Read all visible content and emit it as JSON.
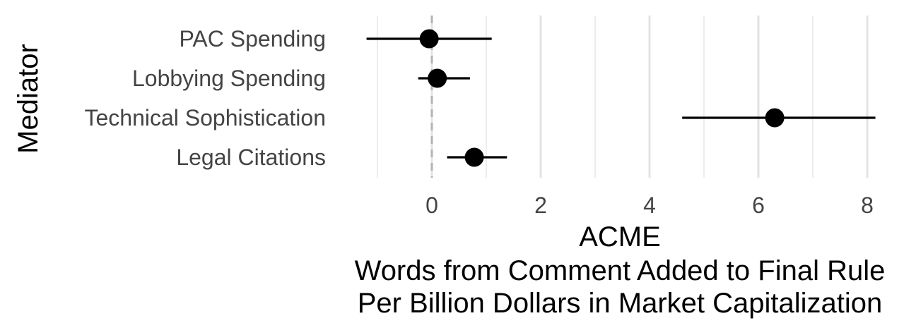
{
  "chart_data": {
    "type": "scatter",
    "subtype": "coefficient-plot-with-intervals",
    "xlabel_lines": [
      "ACME",
      "Words from Comment Added to Final Rule",
      "Per Billion Dollars in Market Capitalization"
    ],
    "ylabel": "Mediator",
    "xlim": [
      -1.2,
      8.3
    ],
    "x_ticks": [
      0,
      2,
      4,
      6,
      8
    ],
    "x_minor_ticks": [
      -1,
      1,
      3,
      5,
      7
    ],
    "reference_line": 0,
    "grid": true,
    "colors": {
      "point": "#000000",
      "interval": "#000000",
      "grid": "#e3e3e3",
      "reference_line": "#b3b3b3",
      "label": "#444444"
    },
    "categories": [
      "PAC Spending",
      "Lobbying Spending",
      "Technical Sophistication",
      "Legal Citations"
    ],
    "points": [
      {
        "category": "PAC Spending",
        "estimate": -0.05,
        "lower": -1.2,
        "upper": 1.1
      },
      {
        "category": "Lobbying Spending",
        "estimate": 0.1,
        "lower": -0.25,
        "upper": 0.7
      },
      {
        "category": "Technical Sophistication",
        "estimate": 6.3,
        "lower": 4.6,
        "upper": 8.15
      },
      {
        "category": "Legal Citations",
        "estimate": 0.78,
        "lower": 0.28,
        "upper": 1.38
      }
    ]
  }
}
